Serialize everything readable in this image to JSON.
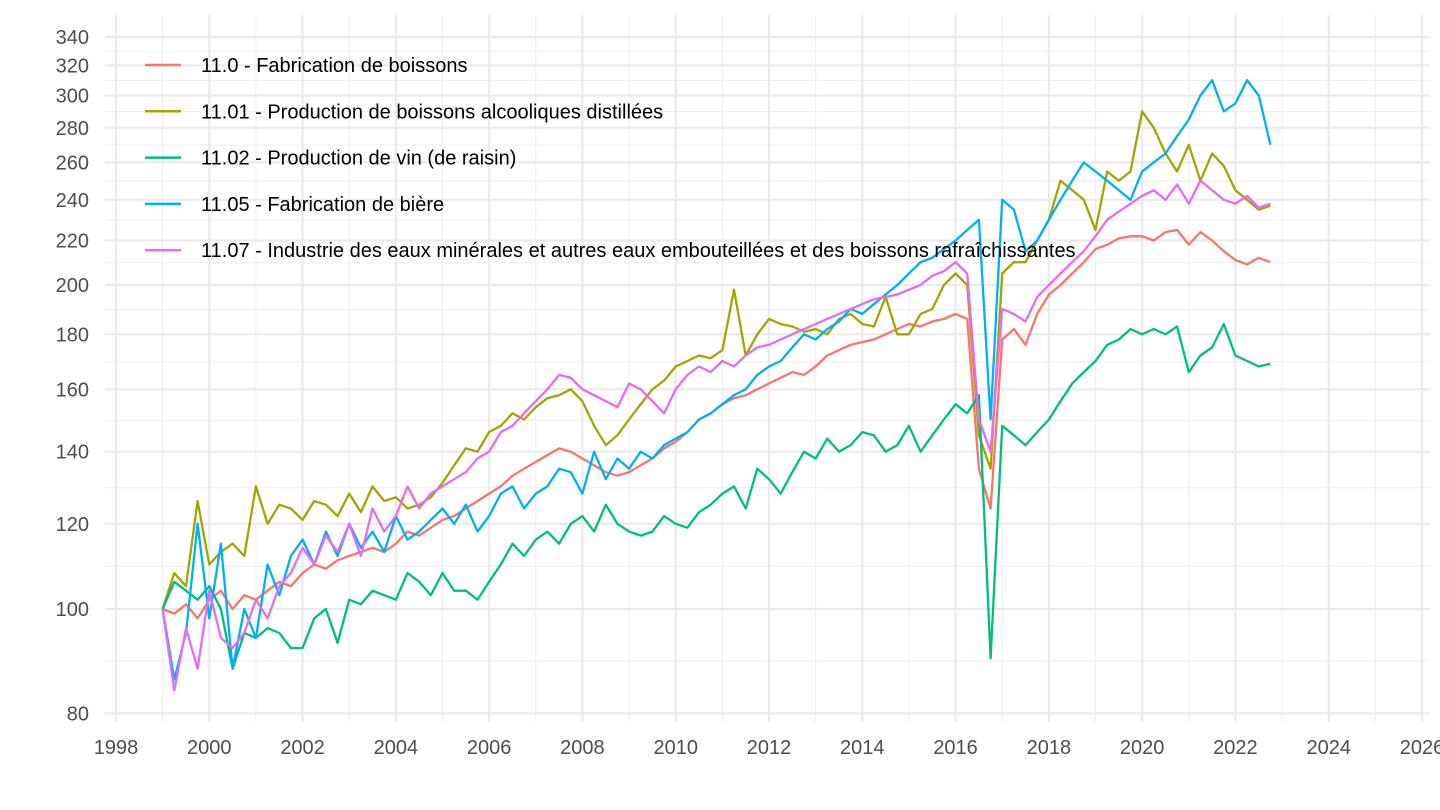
{
  "chart_data": {
    "type": "line",
    "title": "",
    "xlabel": "",
    "ylabel": "",
    "y_scale": "log",
    "xlim": [
      1998,
      2026
    ],
    "ylim": [
      80,
      340
    ],
    "grid": true,
    "legend_position": "top-left",
    "x_ticks": [
      1998,
      2000,
      2002,
      2004,
      2006,
      2008,
      2010,
      2012,
      2014,
      2016,
      2018,
      2020,
      2022,
      2024,
      2026
    ],
    "x_tick_labels": [
      "1998",
      "2000",
      "2002",
      "2004",
      "2006",
      "2008",
      "2010",
      "2012",
      "2014",
      "2016",
      "2018",
      "2020",
      "2022",
      "2024",
      "2026"
    ],
    "y_ticks": [
      80,
      100,
      120,
      140,
      160,
      180,
      200,
      220,
      240,
      260,
      280,
      300,
      320,
      340
    ],
    "y_tick_labels": [
      "80",
      "100",
      "120",
      "140",
      "160",
      "180",
      "200",
      "220",
      "240",
      "260",
      "280",
      "300",
      "320",
      "340"
    ],
    "x_start": 1999.0,
    "x_step": 0.25,
    "series": [
      {
        "name": "11.0 - Fabrication de boissons",
        "color": "#F8766D",
        "values": [
          100,
          99,
          101,
          98,
          102,
          104,
          100,
          103,
          102,
          104,
          106,
          105,
          108,
          110,
          109,
          111,
          112,
          113,
          114,
          113,
          115,
          118,
          117,
          119,
          121,
          122,
          124,
          126,
          128,
          130,
          133,
          135,
          137,
          139,
          141,
          140,
          138,
          136,
          134,
          133,
          134,
          136,
          138,
          141,
          143,
          146,
          150,
          152,
          155,
          157,
          158,
          160,
          162,
          164,
          166,
          165,
          168,
          172,
          174,
          176,
          177,
          178,
          180,
          182,
          184,
          183,
          185,
          186,
          188,
          186,
          135,
          124,
          178,
          182,
          176,
          188,
          196,
          200,
          205,
          210,
          216,
          218,
          221,
          222,
          222,
          220,
          224,
          225,
          218,
          224,
          220,
          215,
          211,
          209,
          212,
          210
        ]
      },
      {
        "name": "11.01 - Production de boissons alcooliques distillées",
        "color": "#A3A500",
        "values": [
          100,
          108,
          105,
          126,
          110,
          113,
          115,
          112,
          130,
          120,
          125,
          124,
          121,
          126,
          125,
          122,
          128,
          123,
          130,
          126,
          127,
          124,
          125,
          127,
          131,
          136,
          141,
          140,
          146,
          148,
          152,
          150,
          154,
          157,
          158,
          160,
          156,
          148,
          142,
          145,
          150,
          155,
          160,
          163,
          168,
          170,
          172,
          171,
          174,
          198,
          172,
          180,
          186,
          184,
          183,
          181,
          182,
          180,
          186,
          188,
          184,
          183,
          195,
          180,
          180,
          188,
          190,
          200,
          205,
          200,
          145,
          135,
          205,
          210,
          210,
          220,
          230,
          250,
          245,
          240,
          225,
          255,
          250,
          255,
          290,
          280,
          265,
          255,
          270,
          250,
          265,
          258,
          245,
          240,
          235,
          237
        ]
      },
      {
        "name": "11.02 - Production de vin (de raisin)",
        "color": "#00BF7D",
        "values": [
          100,
          106,
          104,
          102,
          105,
          100,
          88,
          95,
          94,
          96,
          95,
          92,
          92,
          98,
          100,
          93,
          102,
          101,
          104,
          103,
          102,
          108,
          106,
          103,
          108,
          104,
          104,
          102,
          106,
          110,
          115,
          112,
          116,
          118,
          115,
          120,
          122,
          118,
          125,
          120,
          118,
          117,
          118,
          122,
          120,
          119,
          123,
          125,
          128,
          130,
          124,
          135,
          132,
          128,
          134,
          140,
          138,
          144,
          140,
          142,
          146,
          145,
          140,
          142,
          148,
          140,
          145,
          150,
          155,
          152,
          158,
          90,
          148,
          145,
          142,
          146,
          150,
          156,
          162,
          166,
          170,
          176,
          178,
          182,
          180,
          182,
          180,
          183,
          166,
          172,
          175,
          184,
          172,
          170,
          168,
          169
        ]
      },
      {
        "name": "11.05 - Fabrication de bière",
        "color": "#00B0F6",
        "values": [
          100,
          86,
          95,
          120,
          98,
          115,
          88,
          100,
          94,
          110,
          103,
          112,
          116,
          110,
          118,
          112,
          120,
          114,
          118,
          113,
          122,
          116,
          118,
          121,
          124,
          120,
          125,
          118,
          122,
          128,
          130,
          124,
          128,
          130,
          135,
          134,
          128,
          140,
          132,
          138,
          135,
          140,
          138,
          142,
          144,
          146,
          150,
          152,
          155,
          158,
          160,
          165,
          168,
          170,
          175,
          180,
          178,
          182,
          185,
          190,
          188,
          192,
          196,
          200,
          205,
          210,
          212,
          216,
          220,
          225,
          230,
          150,
          240,
          235,
          215,
          220,
          230,
          240,
          250,
          260,
          255,
          250,
          245,
          240,
          255,
          260,
          265,
          275,
          285,
          300,
          310,
          290,
          295,
          310,
          300,
          270
        ]
      },
      {
        "name": "11.07 - Industrie des eaux minérales et autres eaux embouteillées et des boissons rafraîchissantes",
        "color": "#E76BF3",
        "values": [
          100,
          84,
          96,
          88,
          104,
          94,
          92,
          95,
          102,
          98,
          105,
          108,
          114,
          110,
          117,
          113,
          120,
          112,
          124,
          118,
          122,
          130,
          124,
          128,
          130,
          132,
          134,
          138,
          140,
          146,
          148,
          152,
          156,
          160,
          165,
          164,
          160,
          158,
          156,
          154,
          162,
          160,
          156,
          152,
          160,
          165,
          168,
          166,
          170,
          168,
          172,
          175,
          176,
          178,
          180,
          182,
          184,
          186,
          188,
          190,
          192,
          194,
          195,
          196,
          198,
          200,
          204,
          206,
          210,
          205,
          150,
          140,
          190,
          188,
          185,
          195,
          200,
          205,
          210,
          215,
          222,
          230,
          234,
          238,
          242,
          245,
          240,
          248,
          238,
          250,
          245,
          240,
          238,
          242,
          236,
          238
        ]
      }
    ]
  }
}
